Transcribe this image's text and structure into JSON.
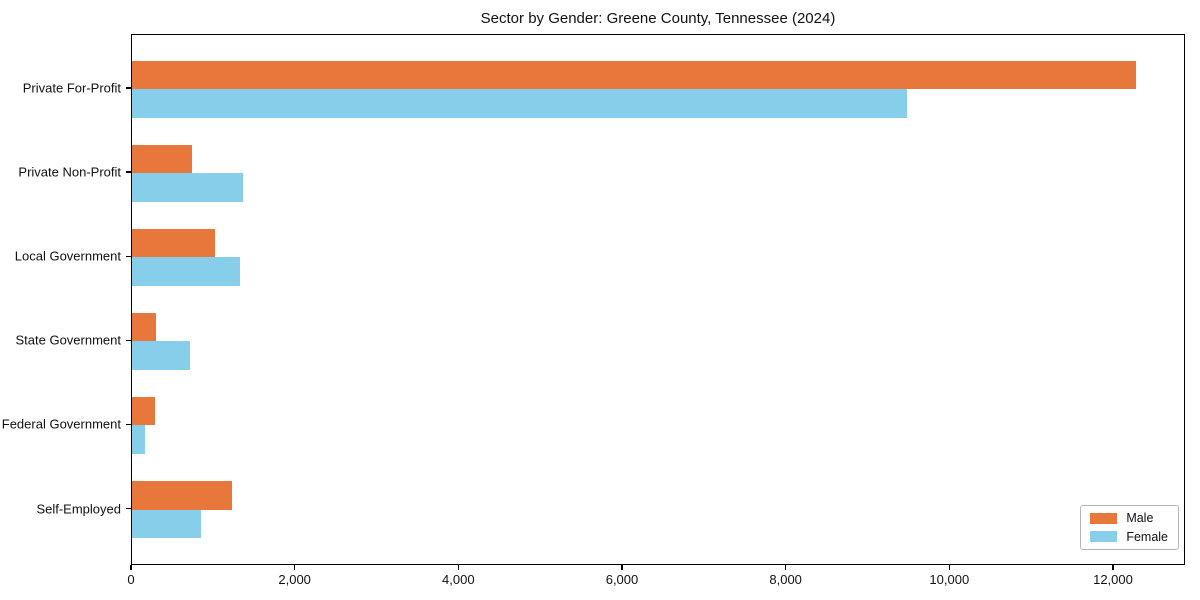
{
  "chart_data": {
    "type": "bar",
    "orientation": "horizontal",
    "title": "Sector by Gender: Greene County, Tennessee (2024)",
    "categories": [
      "Private For-Profit",
      "Private Non-Profit",
      "Local Government",
      "State Government",
      "Federal Government",
      "Self-Employed"
    ],
    "series": [
      {
        "name": "Male",
        "color": "#e8773c",
        "values": [
          12270,
          730,
          1015,
          295,
          285,
          1220
        ]
      },
      {
        "name": "Female",
        "color": "#87ceeb",
        "values": [
          9470,
          1360,
          1320,
          710,
          160,
          845
        ]
      }
    ],
    "xlabel": "",
    "ylabel": "",
    "xlim": [
      0,
      12880
    ],
    "xticks": [
      0,
      2000,
      4000,
      6000,
      8000,
      10000,
      12000
    ],
    "xtick_labels": [
      "0",
      "2,000",
      "4,000",
      "6,000",
      "8,000",
      "10,000",
      "12,000"
    ],
    "grid": false,
    "legend_position": "lower right",
    "spine_color": "#000000",
    "background_color": "#ffffff"
  }
}
